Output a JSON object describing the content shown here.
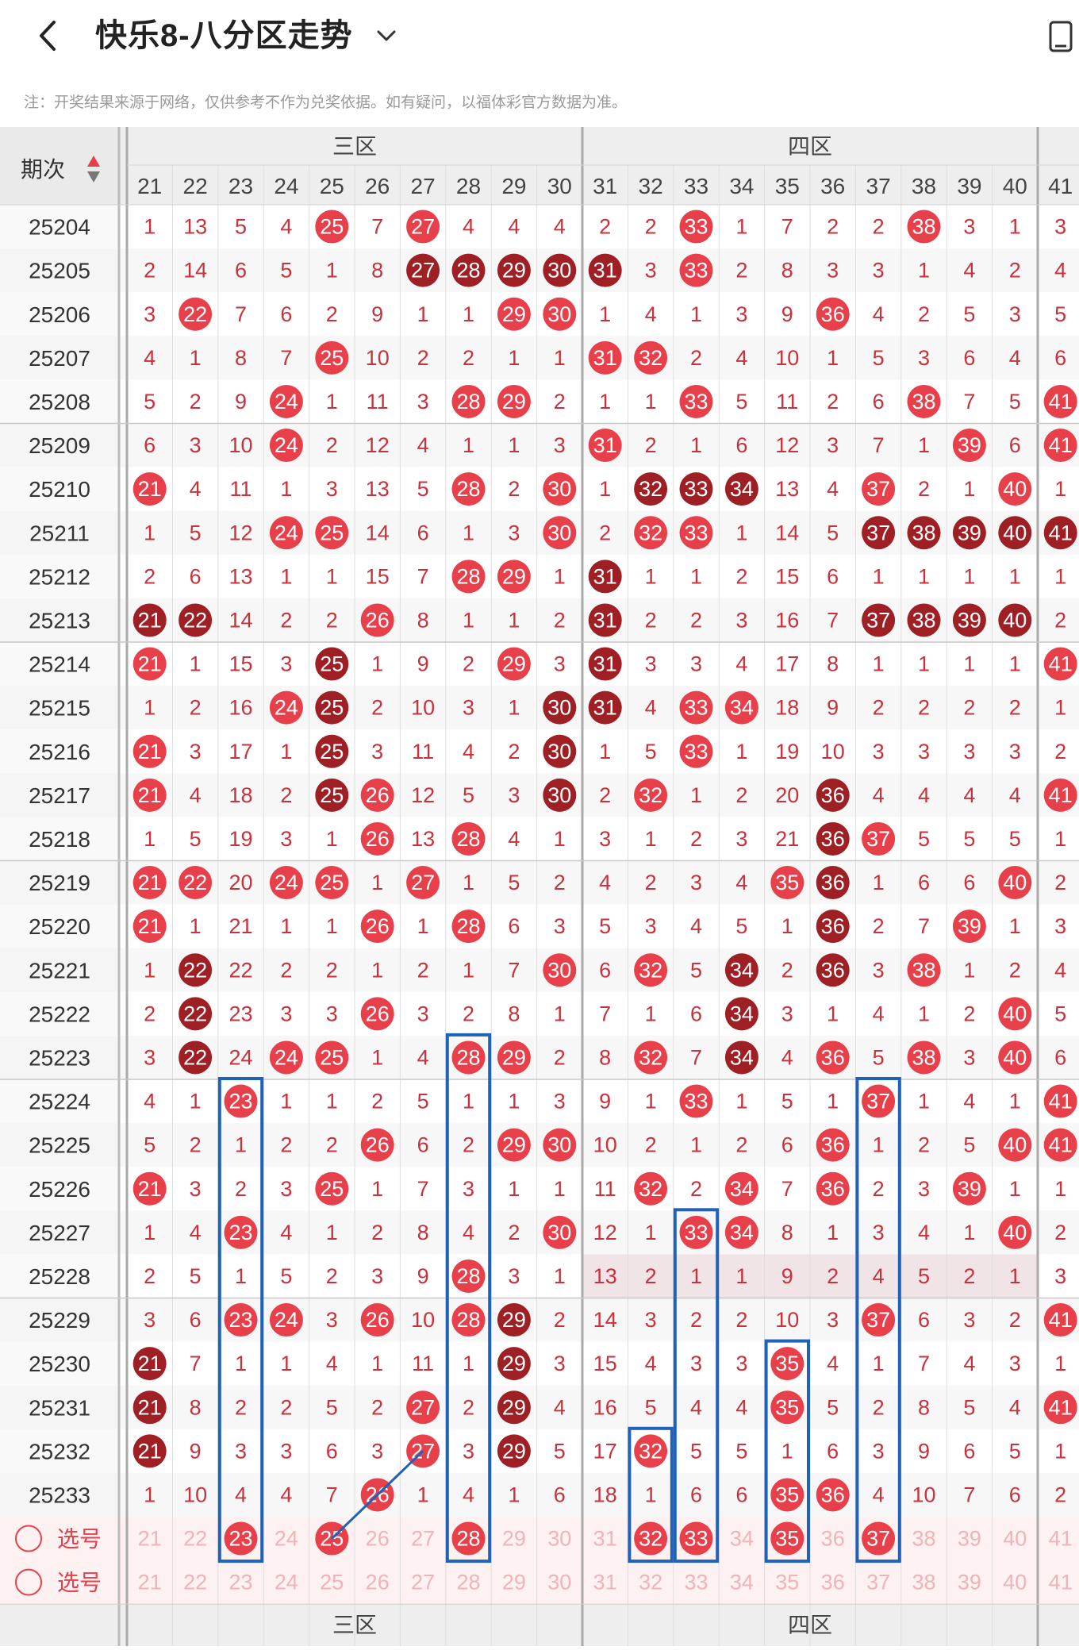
{
  "header": {
    "title": "快乐8-八分区走势",
    "back_icon": "chevron-left-icon",
    "dropdown_icon": "chevron-down-icon",
    "device_icon": "device-rotate-icon"
  },
  "note": "注：开奖结果来源于网络，仅供参考不作为兑奖依据。如有疑问，以福体彩官方数据为准。",
  "table": {
    "period_header": "期次",
    "sort_icon": "sort-icon",
    "zones": [
      {
        "name": "三区",
        "start": 21,
        "end": 30
      },
      {
        "name": "四区",
        "start": 31,
        "end": 40
      }
    ],
    "columns": [
      21,
      22,
      23,
      24,
      25,
      26,
      27,
      28,
      29,
      30,
      31,
      32,
      33,
      34,
      35,
      36,
      37,
      38,
      39,
      40,
      41
    ],
    "select_label": "选号",
    "colors": {
      "hit": "#e8404a",
      "hit_dark": "#9e1f24",
      "miss_text": "#c8323c",
      "row_alt": "#f7f7f7",
      "row_highlight": "#f0e4e6",
      "select_bg": "#fdf1f1",
      "select_text": "#f0b3b7",
      "box": "#1f62b8",
      "header_bg": "#eeeeee"
    },
    "rows": [
      {
        "period": "25204",
        "cells": [
          "1",
          "13",
          "5",
          "4",
          "H:25",
          "7",
          "H:27",
          "4",
          "4",
          "4",
          "2",
          "2",
          "H:33",
          "1",
          "7",
          "2",
          "2",
          "H:38",
          "3",
          "1",
          "3"
        ]
      },
      {
        "period": "25205",
        "cells": [
          "2",
          "14",
          "6",
          "5",
          "1",
          "8",
          "D:27",
          "D:28",
          "D:29",
          "D:30",
          "D:31",
          "3",
          "H:33",
          "2",
          "8",
          "3",
          "3",
          "1",
          "4",
          "2",
          "4"
        ]
      },
      {
        "period": "25206",
        "cells": [
          "3",
          "H:22",
          "7",
          "6",
          "2",
          "9",
          "1",
          "1",
          "H:29",
          "H:30",
          "1",
          "4",
          "1",
          "3",
          "9",
          "H:36",
          "4",
          "2",
          "5",
          "3",
          "5"
        ]
      },
      {
        "period": "25207",
        "cells": [
          "4",
          "1",
          "8",
          "7",
          "H:25",
          "10",
          "2",
          "2",
          "1",
          "1",
          "H:31",
          "H:32",
          "2",
          "4",
          "10",
          "1",
          "5",
          "3",
          "6",
          "4",
          "6"
        ]
      },
      {
        "period": "25208",
        "cells": [
          "5",
          "2",
          "9",
          "H:24",
          "1",
          "11",
          "3",
          "H:28",
          "H:29",
          "2",
          "1",
          "1",
          "H:33",
          "5",
          "11",
          "2",
          "6",
          "H:38",
          "7",
          "5",
          "H:41"
        ]
      },
      {
        "period": "25209",
        "cells": [
          "6",
          "3",
          "10",
          "H:24",
          "2",
          "12",
          "4",
          "1",
          "1",
          "3",
          "H:31",
          "2",
          "1",
          "6",
          "12",
          "3",
          "7",
          "1",
          "H:39",
          "6",
          "H:41"
        ]
      },
      {
        "period": "25210",
        "cells": [
          "H:21",
          "4",
          "11",
          "1",
          "3",
          "13",
          "5",
          "H:28",
          "2",
          "H:30",
          "1",
          "D:32",
          "D:33",
          "D:34",
          "13",
          "4",
          "H:37",
          "2",
          "1",
          "H:40",
          "1"
        ]
      },
      {
        "period": "25211",
        "cells": [
          "1",
          "5",
          "12",
          "H:24",
          "H:25",
          "14",
          "6",
          "1",
          "3",
          "H:30",
          "2",
          "H:32",
          "H:33",
          "1",
          "14",
          "5",
          "D:37",
          "D:38",
          "D:39",
          "D:40",
          "D:41"
        ]
      },
      {
        "period": "25212",
        "cells": [
          "2",
          "6",
          "13",
          "1",
          "1",
          "15",
          "7",
          "H:28",
          "H:29",
          "1",
          "D:31",
          "1",
          "1",
          "2",
          "15",
          "6",
          "1",
          "1",
          "1",
          "1",
          "1"
        ]
      },
      {
        "period": "25213",
        "cells": [
          "D:21",
          "D:22",
          "14",
          "2",
          "2",
          "H:26",
          "8",
          "1",
          "1",
          "2",
          "D:31",
          "2",
          "2",
          "3",
          "16",
          "7",
          "D:37",
          "D:38",
          "D:39",
          "D:40",
          "2"
        ]
      },
      {
        "period": "25214",
        "cells": [
          "H:21",
          "1",
          "15",
          "3",
          "D:25",
          "1",
          "9",
          "2",
          "H:29",
          "3",
          "D:31",
          "3",
          "3",
          "4",
          "17",
          "8",
          "1",
          "1",
          "1",
          "1",
          "H:41"
        ]
      },
      {
        "period": "25215",
        "cells": [
          "1",
          "2",
          "16",
          "H:24",
          "D:25",
          "2",
          "10",
          "3",
          "1",
          "D:30",
          "D:31",
          "4",
          "H:33",
          "H:34",
          "18",
          "9",
          "2",
          "2",
          "2",
          "2",
          "1"
        ]
      },
      {
        "period": "25216",
        "cells": [
          "H:21",
          "3",
          "17",
          "1",
          "D:25",
          "3",
          "11",
          "4",
          "2",
          "D:30",
          "1",
          "5",
          "H:33",
          "1",
          "19",
          "10",
          "3",
          "3",
          "3",
          "3",
          "2"
        ]
      },
      {
        "period": "25217",
        "cells": [
          "H:21",
          "4",
          "18",
          "2",
          "D:25",
          "H:26",
          "12",
          "5",
          "3",
          "D:30",
          "2",
          "H:32",
          "1",
          "2",
          "20",
          "D:36",
          "4",
          "4",
          "4",
          "4",
          "H:41"
        ]
      },
      {
        "period": "25218",
        "cells": [
          "1",
          "5",
          "19",
          "3",
          "1",
          "H:26",
          "13",
          "H:28",
          "4",
          "1",
          "3",
          "1",
          "2",
          "3",
          "21",
          "D:36",
          "H:37",
          "5",
          "5",
          "5",
          "1"
        ]
      },
      {
        "period": "25219",
        "cells": [
          "H:21",
          "H:22",
          "20",
          "H:24",
          "H:25",
          "1",
          "H:27",
          "1",
          "5",
          "2",
          "4",
          "2",
          "3",
          "4",
          "H:35",
          "D:36",
          "1",
          "6",
          "6",
          "H:40",
          "2"
        ]
      },
      {
        "period": "25220",
        "cells": [
          "H:21",
          "1",
          "21",
          "1",
          "1",
          "H:26",
          "1",
          "H:28",
          "6",
          "3",
          "5",
          "3",
          "4",
          "5",
          "1",
          "D:36",
          "2",
          "7",
          "H:39",
          "1",
          "3"
        ]
      },
      {
        "period": "25221",
        "cells": [
          "1",
          "D:22",
          "22",
          "2",
          "2",
          "1",
          "2",
          "1",
          "7",
          "H:30",
          "6",
          "H:32",
          "5",
          "D:34",
          "2",
          "D:36",
          "3",
          "H:38",
          "1",
          "2",
          "4"
        ]
      },
      {
        "period": "25222",
        "cells": [
          "2",
          "D:22",
          "23",
          "3",
          "3",
          "H:26",
          "3",
          "2",
          "8",
          "1",
          "7",
          "1",
          "6",
          "D:34",
          "3",
          "1",
          "4",
          "1",
          "2",
          "H:40",
          "5"
        ]
      },
      {
        "period": "25223",
        "cells": [
          "3",
          "D:22",
          "24",
          "H:24",
          "H:25",
          "1",
          "4",
          "H:28",
          "H:29",
          "2",
          "8",
          "H:32",
          "7",
          "D:34",
          "4",
          "H:36",
          "5",
          "H:38",
          "3",
          "H:40",
          "6"
        ]
      },
      {
        "period": "25224",
        "cells": [
          "4",
          "1",
          "H:23",
          "1",
          "1",
          "2",
          "5",
          "1",
          "1",
          "3",
          "9",
          "1",
          "H:33",
          "1",
          "5",
          "1",
          "H:37",
          "1",
          "4",
          "1",
          "H:41"
        ]
      },
      {
        "period": "25225",
        "cells": [
          "5",
          "2",
          "1",
          "2",
          "2",
          "H:26",
          "6",
          "2",
          "H:29",
          "H:30",
          "10",
          "2",
          "1",
          "2",
          "6",
          "H:36",
          "1",
          "2",
          "5",
          "H:40",
          "H:41"
        ]
      },
      {
        "period": "25226",
        "cells": [
          "H:21",
          "3",
          "2",
          "3",
          "H:25",
          "1",
          "7",
          "3",
          "1",
          "1",
          "11",
          "H:32",
          "2",
          "H:34",
          "7",
          "H:36",
          "2",
          "3",
          "H:39",
          "1",
          "1"
        ]
      },
      {
        "period": "25227",
        "cells": [
          "1",
          "4",
          "H:23",
          "4",
          "1",
          "2",
          "8",
          "4",
          "2",
          "H:30",
          "12",
          "1",
          "H:33",
          "H:34",
          "8",
          "1",
          "3",
          "4",
          "1",
          "H:40",
          "2"
        ]
      },
      {
        "period": "25228",
        "cells": [
          "2",
          "5",
          "1",
          "5",
          "2",
          "3",
          "9",
          "H:28",
          "3",
          "1",
          "13",
          "2",
          "1",
          "1",
          "9",
          "2",
          "4",
          "5",
          "2",
          "1",
          "3"
        ]
      },
      {
        "period": "25229",
        "cells": [
          "3",
          "6",
          "H:23",
          "H:24",
          "3",
          "H:26",
          "10",
          "H:28",
          "D:29",
          "2",
          "14",
          "3",
          "2",
          "2",
          "10",
          "3",
          "H:37",
          "6",
          "3",
          "2",
          "H:41"
        ]
      },
      {
        "period": "25230",
        "cells": [
          "D:21",
          "7",
          "1",
          "1",
          "4",
          "1",
          "11",
          "1",
          "D:29",
          "3",
          "15",
          "4",
          "3",
          "3",
          "H:35",
          "4",
          "1",
          "7",
          "4",
          "3",
          "1"
        ]
      },
      {
        "period": "25231",
        "cells": [
          "D:21",
          "8",
          "2",
          "2",
          "5",
          "2",
          "H:27",
          "2",
          "D:29",
          "4",
          "16",
          "5",
          "4",
          "4",
          "H:35",
          "5",
          "2",
          "8",
          "5",
          "4",
          "H:41"
        ]
      },
      {
        "period": "25232",
        "cells": [
          "D:21",
          "9",
          "3",
          "3",
          "6",
          "3",
          "H:27",
          "3",
          "D:29",
          "5",
          "17",
          "H:32",
          "5",
          "5",
          "1",
          "6",
          "3",
          "9",
          "6",
          "5",
          "1"
        ]
      },
      {
        "period": "25233",
        "cells": [
          "1",
          "10",
          "4",
          "4",
          "7",
          "H:26",
          "1",
          "4",
          "1",
          "6",
          "18",
          "1",
          "6",
          "6",
          "H:35",
          "H:36",
          "4",
          "10",
          "7",
          "6",
          "2"
        ]
      }
    ],
    "select_row1": [
      "21",
      "22",
      "H:23",
      "24",
      "H:25",
      "26",
      "27",
      "H:28",
      "29",
      "30",
      "31",
      "H:32",
      "H:33",
      "34",
      "H:35",
      "36",
      "H:37",
      "38",
      "39",
      "40",
      "41"
    ],
    "select_row2": [
      "21",
      "22",
      "23",
      "24",
      "25",
      "26",
      "27",
      "28",
      "29",
      "30",
      "31",
      "32",
      "33",
      "34",
      "35",
      "36",
      "37",
      "38",
      "39",
      "40",
      "41"
    ]
  }
}
